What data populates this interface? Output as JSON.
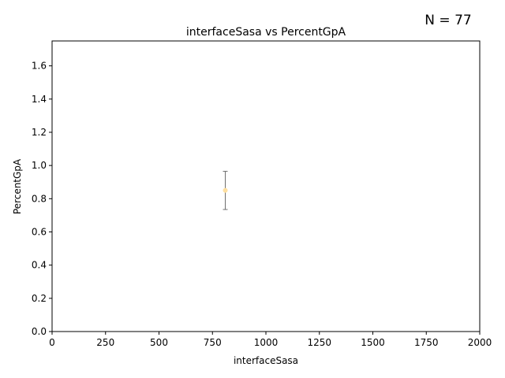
{
  "chart_data": {
    "type": "scatter",
    "title": "interfaceSasa vs PercentGpA",
    "xlabel": "interfaceSasa",
    "ylabel": "PercentGpA",
    "xlim": [
      0,
      2000
    ],
    "ylim": [
      0,
      1.75
    ],
    "xticks": [
      0,
      250,
      500,
      750,
      1000,
      1250,
      1500,
      1750,
      2000
    ],
    "xtick_labels": [
      "0",
      "250",
      "500",
      "750",
      "1000",
      "1250",
      "1500",
      "1750",
      "2000"
    ],
    "yticks": [
      0.0,
      0.2,
      0.4,
      0.6,
      0.8,
      1.0,
      1.2,
      1.4,
      1.6
    ],
    "ytick_labels": [
      "0.0",
      "0.2",
      "0.4",
      "0.6",
      "0.8",
      "1.0",
      "1.2",
      "1.4",
      "1.6"
    ],
    "grid": false,
    "annotation": "N = 77",
    "points": [
      {
        "x": 810,
        "y": 0.85,
        "yerr_low": 0.735,
        "yerr_high": 0.965
      }
    ],
    "colors": {
      "point": "#ffe0a0",
      "errorbar": "#707070",
      "axis": "#000000"
    }
  }
}
